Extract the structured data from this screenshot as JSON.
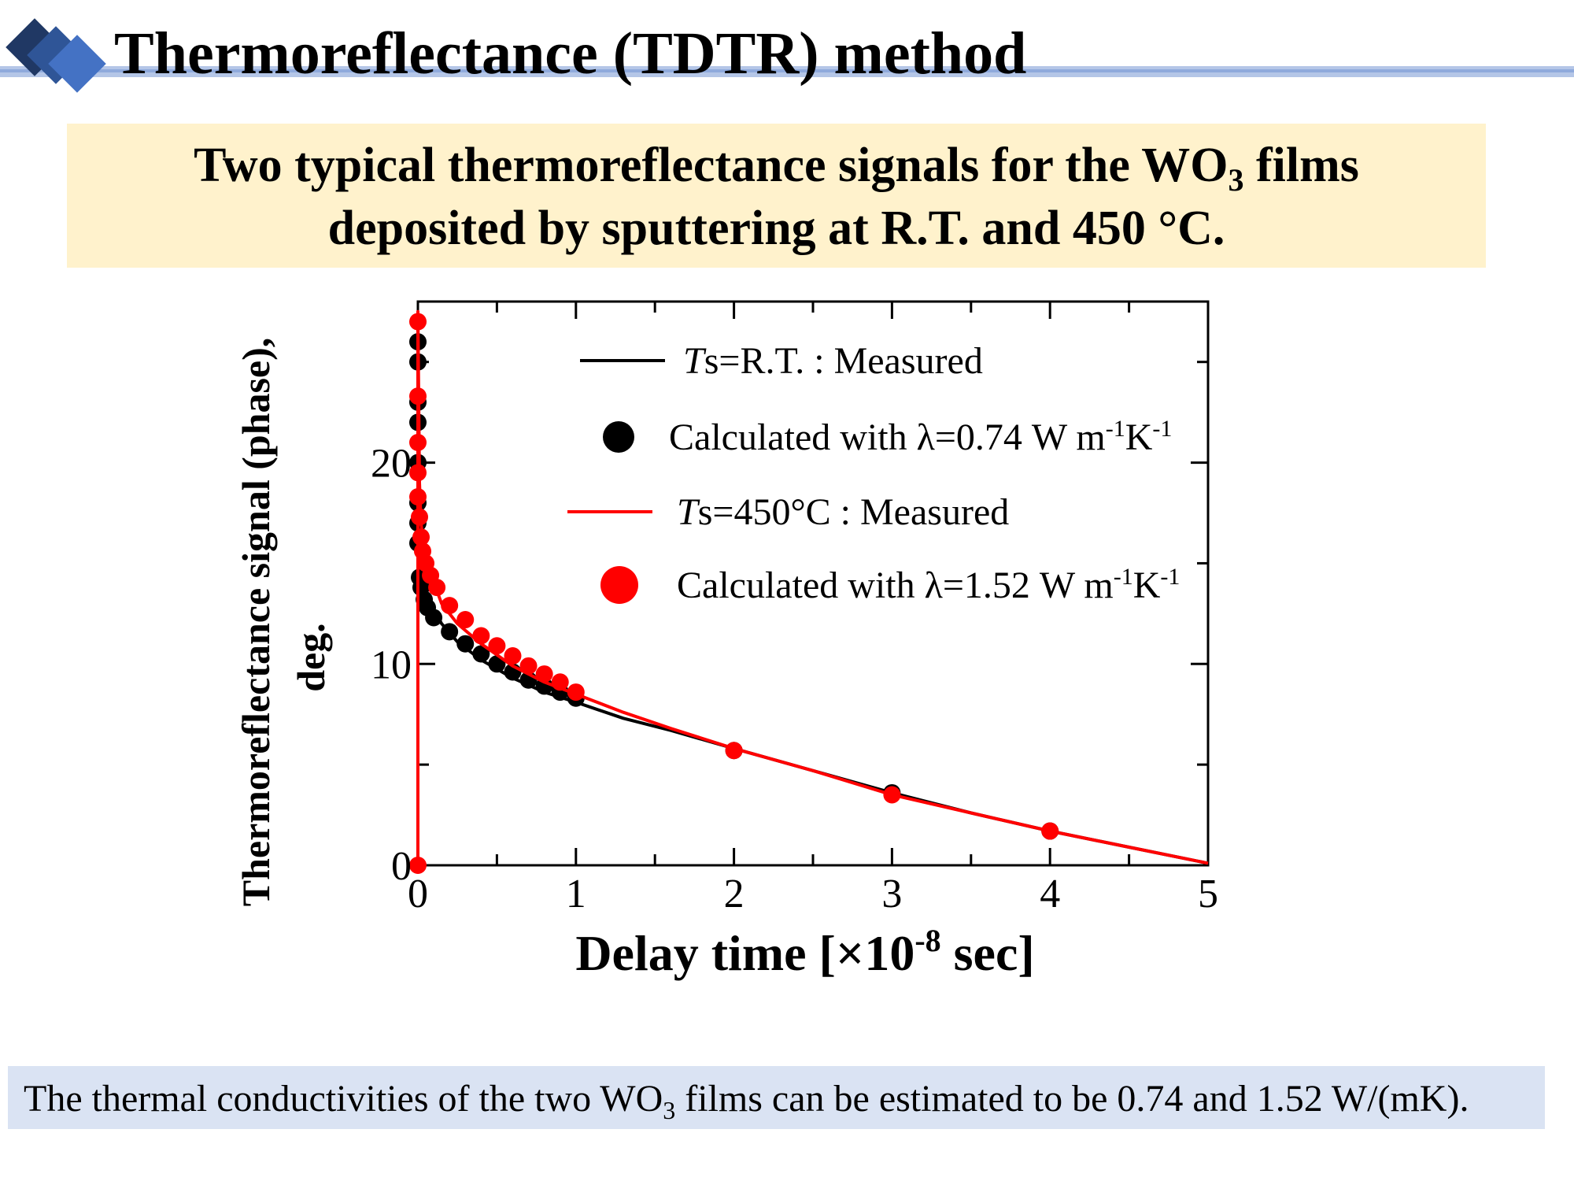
{
  "header": {
    "title": "Thermoreflectance (TDTR) method"
  },
  "subtitle": {
    "line1_prefix": "Two typical thermoreflectance signals for the WO",
    "line1_sub": "3",
    "line1_suffix": " films",
    "line2": "deposited by sputtering at R.T. and 450 °C."
  },
  "footer": {
    "prefix": "The thermal conductivities of the two WO",
    "sub": "3",
    "suffix": " films can be estimated to be 0.74 and 1.52 W/(mK)."
  },
  "colors": {
    "rt": "#000000",
    "t450": "#ff0000",
    "subtitle_bg": "#fff2cc",
    "footer_bg": "#dae3f3",
    "header_bar": "#b4c6e7"
  },
  "chart_data": {
    "type": "line",
    "xlabel": "Delay time  [×10-8 sec]",
    "ylabel_line1": "Thermoreflectance signal (phase),",
    "ylabel_line2": "deg.",
    "xlim": [
      0,
      5
    ],
    "ylim": [
      0,
      28
    ],
    "xticks": [
      0,
      1,
      2,
      3,
      4,
      5
    ],
    "yticks": [
      0,
      10,
      20
    ],
    "grid": false,
    "legend_position": "top-right",
    "legend": [
      {
        "marker": "line",
        "color": "#000000",
        "label_italic": "T",
        "label": "s=R.T. : Measured"
      },
      {
        "marker": "dot",
        "color": "#000000",
        "label": "Calculated with λ=0.74 W m-1K-1"
      },
      {
        "marker": "line",
        "color": "#ff0000",
        "label_italic": "T",
        "label": "s=450°C : Measured"
      },
      {
        "marker": "dot",
        "color": "#ff0000",
        "label": "Calculated with λ=1.52 W m-1K-1"
      }
    ],
    "series": [
      {
        "name": "Ts=R.T. : Measured",
        "kind": "line",
        "color": "#000000",
        "points": [
          [
            0,
            26
          ],
          [
            0.01,
            18
          ],
          [
            0.02,
            15.5
          ],
          [
            0.04,
            14
          ],
          [
            0.08,
            13
          ],
          [
            0.15,
            12
          ],
          [
            0.25,
            11.1
          ],
          [
            0.4,
            10.2
          ],
          [
            0.6,
            9.3
          ],
          [
            0.8,
            8.6
          ],
          [
            1.0,
            8.1
          ],
          [
            1.3,
            7.3
          ],
          [
            1.6,
            6.7
          ],
          [
            2.0,
            5.8
          ],
          [
            2.5,
            4.7
          ],
          [
            3.0,
            3.6
          ],
          [
            3.5,
            2.6
          ],
          [
            4.0,
            1.7
          ],
          [
            4.5,
            0.9
          ],
          [
            5.0,
            0.1
          ]
        ]
      },
      {
        "name": "Calculated with λ=0.74 W m-1K-1",
        "kind": "dots",
        "color": "#000000",
        "points": [
          [
            0,
            26
          ],
          [
            0,
            25
          ],
          [
            0,
            23
          ],
          [
            0,
            22
          ],
          [
            0,
            20
          ],
          [
            0,
            18
          ],
          [
            0,
            17
          ],
          [
            0,
            16
          ],
          [
            0.01,
            14.3
          ],
          [
            0.02,
            13.8
          ],
          [
            0.04,
            13.2
          ],
          [
            0.06,
            12.8
          ],
          [
            0.1,
            12.3
          ],
          [
            0.2,
            11.6
          ],
          [
            0.3,
            11.0
          ],
          [
            0.4,
            10.5
          ],
          [
            0.5,
            10.0
          ],
          [
            0.6,
            9.6
          ],
          [
            0.7,
            9.2
          ],
          [
            0.8,
            8.9
          ],
          [
            0.9,
            8.6
          ],
          [
            1.0,
            8.3
          ],
          [
            2.0,
            5.7
          ],
          [
            3.0,
            3.6
          ],
          [
            4.0,
            1.7
          ]
        ]
      },
      {
        "name": "Ts=450°C : Measured",
        "kind": "line",
        "color": "#ff0000",
        "points": [
          [
            0,
            0
          ],
          [
            0,
            27.5
          ],
          [
            0.01,
            19
          ],
          [
            0.02,
            17
          ],
          [
            0.04,
            15.5
          ],
          [
            0.08,
            14.5
          ],
          [
            0.15,
            13
          ],
          [
            0.25,
            12
          ],
          [
            0.4,
            11
          ],
          [
            0.6,
            9.9
          ],
          [
            0.8,
            9.1
          ],
          [
            1.0,
            8.5
          ],
          [
            1.3,
            7.6
          ],
          [
            1.6,
            6.8
          ],
          [
            2.0,
            5.8
          ],
          [
            2.5,
            4.7
          ],
          [
            3.0,
            3.5
          ],
          [
            3.5,
            2.6
          ],
          [
            4.0,
            1.7
          ],
          [
            4.5,
            0.9
          ],
          [
            5.0,
            0.1
          ]
        ]
      },
      {
        "name": "Calculated with λ=1.52 W m-1K-1",
        "kind": "dots",
        "color": "#ff0000",
        "points": [
          [
            0,
            0
          ],
          [
            0,
            27
          ],
          [
            0,
            23.3
          ],
          [
            0,
            21
          ],
          [
            0,
            19.5
          ],
          [
            0,
            18.3
          ],
          [
            0.01,
            17.3
          ],
          [
            0.02,
            16.3
          ],
          [
            0.03,
            15.6
          ],
          [
            0.05,
            15.0
          ],
          [
            0.08,
            14.4
          ],
          [
            0.12,
            13.8
          ],
          [
            0.2,
            12.9
          ],
          [
            0.3,
            12.2
          ],
          [
            0.4,
            11.4
          ],
          [
            0.5,
            10.9
          ],
          [
            0.6,
            10.4
          ],
          [
            0.7,
            9.9
          ],
          [
            0.8,
            9.5
          ],
          [
            0.9,
            9.1
          ],
          [
            1.0,
            8.6
          ],
          [
            2.0,
            5.7
          ],
          [
            3.0,
            3.5
          ],
          [
            4.0,
            1.7
          ]
        ]
      }
    ]
  }
}
